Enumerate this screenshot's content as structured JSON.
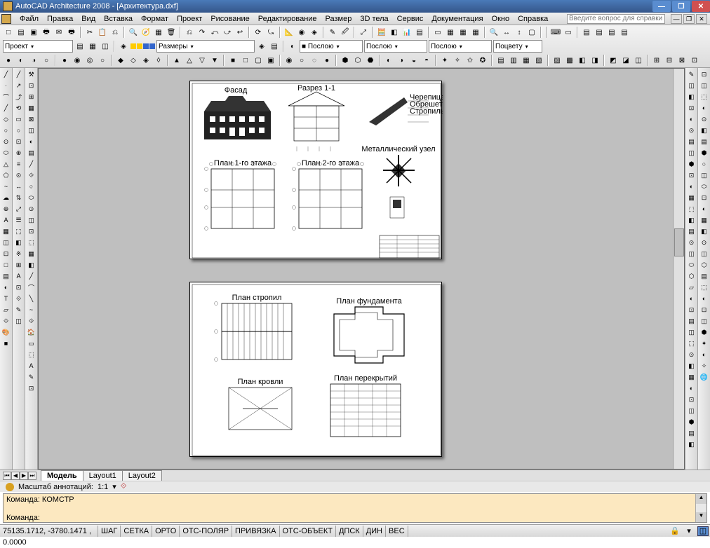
{
  "title": "AutoCAD Architecture 2008 - [Архитектура.dxf]",
  "menu": [
    "Файл",
    "Правка",
    "Вид",
    "Вставка",
    "Формат",
    "Проект",
    "Рисование",
    "Редактирование",
    "Размер",
    "3D тела",
    "Сервис",
    "Документация",
    "Окно",
    "Справка"
  ],
  "help_placeholder": "Введите вопрос для справки",
  "dropdowns": {
    "project": "Проект",
    "dimensions": "Размеры",
    "bylayer1": "■ Послою",
    "bylayer2": "Послою",
    "bylayer3": "Послою",
    "bycolor": "Поцвету"
  },
  "layout_tabs": {
    "model": "Модель",
    "l1": "Layout1",
    "l2": "Layout2"
  },
  "anno": {
    "label": "Масштаб аннотаций:",
    "scale": "1:1"
  },
  "cmd": {
    "line1": "Команда: КОМСТР",
    "line2": "Команда:"
  },
  "status": {
    "coords": "75135.1712, -3780.1471 , 0.0000",
    "toggles": [
      "ШАГ",
      "СЕТКА",
      "ОРТО",
      "ОТС-ПОЛЯР",
      "ПРИВЯЗКА",
      "ОТС-ОБЪЕКТ",
      "ДПСК",
      "ДИН",
      "ВЕС"
    ]
  },
  "colors": {
    "titlebar_grad_top": "#4a7ab8",
    "titlebar_grad_bot": "#35568a",
    "canvas_bg": "#bfbfbf",
    "cmd_bg": "#fce8c0"
  },
  "toolbar_icons_row1": [
    "□",
    "▤",
    "▣",
    "🖶",
    "✉",
    "🖶",
    "|",
    "✂",
    "📋",
    "⎌",
    "|",
    "🔍",
    "🧭",
    "▦",
    "🗑",
    "|",
    "⎌",
    "↷",
    "⤺",
    "⤻",
    "↩",
    "|",
    "⟳",
    "⤿",
    "|",
    "📐",
    "◉",
    "◈",
    "|",
    "✎",
    "🖉",
    "|",
    "⤢",
    "|",
    "🧮",
    "◧",
    "📊",
    "▤",
    "|",
    "▭",
    "▦",
    "▦",
    "▦",
    "|",
    "🔍",
    "↔",
    "↕",
    "▢",
    "|",
    "|",
    "⌨",
    "▭",
    "|",
    "▤",
    "▤",
    "▤",
    "▤"
  ],
  "toolbar_icons_row3": [
    "●",
    "◐",
    "◑",
    "○",
    "|",
    "●",
    "◉",
    "◎",
    "○",
    "|",
    "◆",
    "◇",
    "◈",
    "◊",
    "|",
    "▲",
    "△",
    "▽",
    "▼",
    "|",
    "■",
    "□",
    "▢",
    "▣",
    "|",
    "◉",
    "○",
    "◌",
    "●",
    "|",
    "⬢",
    "⬡",
    "⬣",
    "|",
    "◐",
    "◑",
    "◒",
    "◓",
    "|",
    "✦",
    "✧",
    "✩",
    "✪",
    "|",
    "▤",
    "▥",
    "▦",
    "▧",
    "|",
    "▨",
    "▩",
    "◧",
    "◨",
    "|",
    "◩",
    "◪",
    "◫",
    "|",
    "⊞",
    "⊟",
    "⊠",
    "⊡"
  ],
  "left_tb1": [
    "╱",
    "·",
    "⌒",
    "╱",
    "◇",
    "○",
    "⊙",
    "⬭",
    "△",
    "⬠",
    "~",
    "☁",
    "⊕",
    "A",
    "▦",
    "◫",
    "⊡",
    "□",
    "▤",
    "◐",
    "T",
    "▱",
    "⟐",
    "🎨",
    "■"
  ],
  "left_tb2": [
    "╱",
    "↗",
    "⤴",
    "⟲",
    "▭",
    "○",
    "⊡",
    "⊕",
    "≡",
    "⊙",
    "↔",
    "⇅",
    "⤢",
    "☰",
    "⬚",
    "◧",
    "※",
    "⊞",
    "A",
    "⊡",
    "⟐",
    "✎",
    "◫"
  ],
  "left_tb3": [
    "⚒",
    "⊡",
    "⊞",
    "▦",
    "⊠",
    "◫",
    "◐",
    "▤",
    "╱",
    "⟐",
    "○",
    "⬭",
    "⊙",
    "◫",
    "⊡",
    "⬚",
    "▦",
    "◧",
    "╱",
    "⌒",
    "╲",
    "~",
    "⟐",
    "🏠",
    "▭",
    "⬚",
    "A",
    "✎",
    "⊡"
  ],
  "right_tb1": [
    "✎",
    "◫",
    "◧",
    "⊡",
    "◐",
    "⊙",
    "▤",
    "◫",
    "⬢",
    "⊡",
    "◐",
    "▦",
    "⬚",
    "◧",
    "▤",
    "⊙",
    "◫",
    "⬭",
    "⬡",
    "▱",
    "◐",
    "⊡",
    "▤",
    "◫",
    "⬚",
    "⊙",
    "◧",
    "▦",
    "◐",
    "⊡",
    "◫",
    "⬢",
    "▤",
    "◧"
  ],
  "right_tb2": [
    "⊡",
    "◫",
    "⬚",
    "◐",
    "⊙",
    "◧",
    "▤",
    "⬢",
    "○",
    "◫",
    "⬭",
    "⊡",
    "◐",
    "▦",
    "◧",
    "⊙",
    "◫",
    "⬡",
    "▤",
    "⬚",
    "◐",
    "⊡",
    "◫",
    "⬢",
    "✦",
    "◐",
    "✧",
    "🌐"
  ]
}
